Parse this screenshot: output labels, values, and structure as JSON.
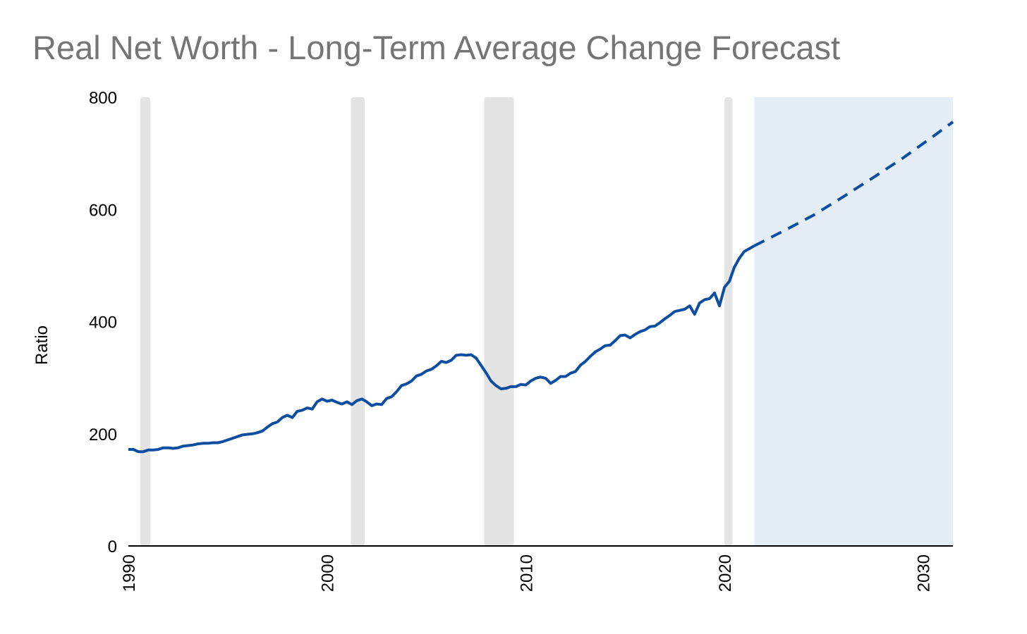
{
  "chart_data": {
    "type": "line",
    "title": "Real Net Worth - Long-Term Average Change Forecast",
    "xlabel": "",
    "ylabel": "Ratio",
    "xlim": [
      1990,
      2031.5
    ],
    "ylim": [
      0,
      800
    ],
    "y_ticks": [
      "0",
      "200",
      "400",
      "600",
      "800"
    ],
    "x_ticks": [
      "1990",
      "2000",
      "2010",
      "2020",
      "2030"
    ],
    "grid": false,
    "legend": "none",
    "colors": {
      "line": "#0d4ea1",
      "recession_band": "#e4e4e4",
      "forecast_band": "#e5edf6",
      "axis": "#000000",
      "title": "#757575"
    },
    "recession_bands": [
      {
        "start": 1990.6,
        "end": 1991.1
      },
      {
        "start": 2001.2,
        "end": 2001.9
      },
      {
        "start": 2007.9,
        "end": 2009.4
      },
      {
        "start": 2020.0,
        "end": 2020.4
      }
    ],
    "forecast_region": {
      "start": 2021.5,
      "end": 2031.5
    },
    "series": [
      {
        "style": "solid",
        "x": [
          1990.0,
          1990.25,
          1990.5,
          1990.75,
          1991.0,
          1991.25,
          1991.5,
          1991.75,
          1992.0,
          1992.25,
          1992.5,
          1992.75,
          1993.0,
          1993.25,
          1993.5,
          1993.75,
          1994.0,
          1994.25,
          1994.5,
          1994.75,
          1995.0,
          1995.25,
          1995.5,
          1995.75,
          1996.0,
          1996.25,
          1996.5,
          1996.75,
          1997.0,
          1997.25,
          1997.5,
          1997.75,
          1998.0,
          1998.25,
          1998.5,
          1998.75,
          1999.0,
          1999.25,
          1999.5,
          1999.75,
          2000.0,
          2000.25,
          2000.5,
          2000.75,
          2001.0,
          2001.25,
          2001.5,
          2001.75,
          2002.0,
          2002.25,
          2002.5,
          2002.75,
          2003.0,
          2003.25,
          2003.5,
          2003.75,
          2004.0,
          2004.25,
          2004.5,
          2004.75,
          2005.0,
          2005.25,
          2005.5,
          2005.75,
          2006.0,
          2006.25,
          2006.5,
          2006.75,
          2007.0,
          2007.25,
          2007.5,
          2007.75,
          2008.0,
          2008.25,
          2008.5,
          2008.75,
          2009.0,
          2009.25,
          2009.5,
          2009.75,
          2010.0,
          2010.25,
          2010.5,
          2010.75,
          2011.0,
          2011.25,
          2011.5,
          2011.75,
          2012.0,
          2012.25,
          2012.5,
          2012.75,
          2013.0,
          2013.25,
          2013.5,
          2013.75,
          2014.0,
          2014.25,
          2014.5,
          2014.75,
          2015.0,
          2015.25,
          2015.5,
          2015.75,
          2016.0,
          2016.25,
          2016.5,
          2016.75,
          2017.0,
          2017.25,
          2017.5,
          2017.75,
          2018.0,
          2018.25,
          2018.5,
          2018.75,
          2019.0,
          2019.25,
          2019.5,
          2019.75,
          2020.0,
          2020.25,
          2020.5,
          2020.75,
          2021.0,
          2021.25,
          2021.5
        ],
        "y": [
          172,
          172,
          168,
          168,
          171,
          171,
          172,
          175,
          175,
          174,
          175,
          178,
          179,
          180,
          182,
          183,
          183,
          184,
          184,
          186,
          189,
          192,
          195,
          198,
          199,
          200,
          202,
          205,
          212,
          218,
          221,
          229,
          233,
          229,
          240,
          242,
          246,
          244,
          257,
          262,
          258,
          260,
          256,
          253,
          257,
          252,
          259,
          262,
          257,
          250,
          253,
          252,
          263,
          266,
          275,
          286,
          289,
          294,
          303,
          306,
          312,
          315,
          321,
          329,
          327,
          331,
          340,
          341,
          340,
          341,
          335,
          322,
          309,
          294,
          286,
          280,
          281,
          284,
          284,
          288,
          287,
          294,
          299,
          301,
          299,
          290,
          295,
          302,
          302,
          308,
          311,
          322,
          329,
          338,
          346,
          351,
          357,
          358,
          366,
          375,
          376,
          371,
          377,
          382,
          385,
          391,
          392,
          398,
          405,
          411,
          418,
          420,
          422,
          428,
          413,
          433,
          439,
          441,
          451,
          428,
          461,
          472,
          497,
          513,
          525,
          530,
          535
        ]
      },
      {
        "style": "dashed",
        "x": [
          2021.5,
          2023,
          2024.5,
          2026,
          2027.5,
          2029,
          2030.5,
          2031.5
        ],
        "y": [
          535,
          562,
          590,
          623,
          657,
          692,
          730,
          756
        ]
      }
    ]
  }
}
